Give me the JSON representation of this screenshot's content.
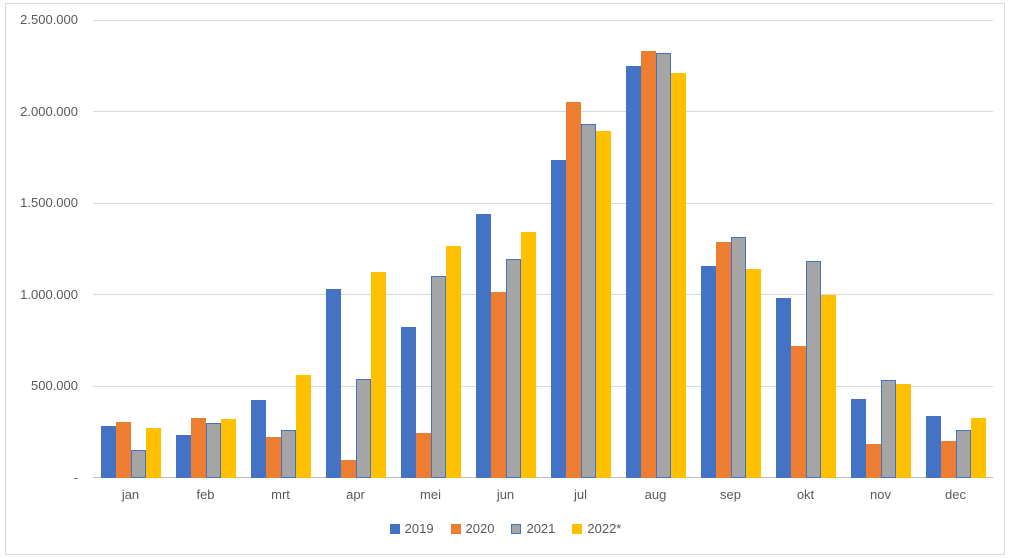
{
  "chart_data": {
    "type": "bar",
    "title": "",
    "categories": [
      "jan",
      "feb",
      "mrt",
      "apr",
      "mei",
      "jun",
      "jul",
      "aug",
      "sep",
      "okt",
      "nov",
      "dec"
    ],
    "series": [
      {
        "name": "2019",
        "color": "#4472C4",
        "values": [
          285000,
          235000,
          425000,
          1030000,
          825000,
          1440000,
          1735000,
          2250000,
          1155000,
          980000,
          430000,
          340000
        ]
      },
      {
        "name": "2020",
        "color": "#ED7D31",
        "values": [
          305000,
          330000,
          225000,
          100000,
          245000,
          1015000,
          2055000,
          2330000,
          1290000,
          720000,
          185000,
          200000
        ]
      },
      {
        "name": "2021",
        "color": "#A5A5A5",
        "border_color": "#4472C4",
        "values": [
          155000,
          300000,
          260000,
          540000,
          1105000,
          1195000,
          1935000,
          2320000,
          1315000,
          1185000,
          535000,
          260000
        ]
      },
      {
        "name": "2022*",
        "color": "#FFC000",
        "values": [
          275000,
          320000,
          565000,
          1125000,
          1265000,
          1345000,
          1895000,
          2210000,
          1140000,
          1000000,
          515000,
          325000
        ]
      }
    ],
    "y_axis": {
      "min": 0,
      "max": 2500000,
      "tick_interval": 500000,
      "tick_labels": [
        "-",
        "500.000",
        "1.000.000",
        "1.500.000",
        "2.000.000",
        "2.500.000"
      ]
    },
    "xlabel": "",
    "ylabel": "",
    "grid": true,
    "legend_position": "bottom",
    "colors": {
      "gridline": "#D9D9D9",
      "axis_line": "#BFBFBF",
      "text": "#595959",
      "background": "#FFFFFF",
      "chart_border": "#D9D9D9"
    }
  }
}
